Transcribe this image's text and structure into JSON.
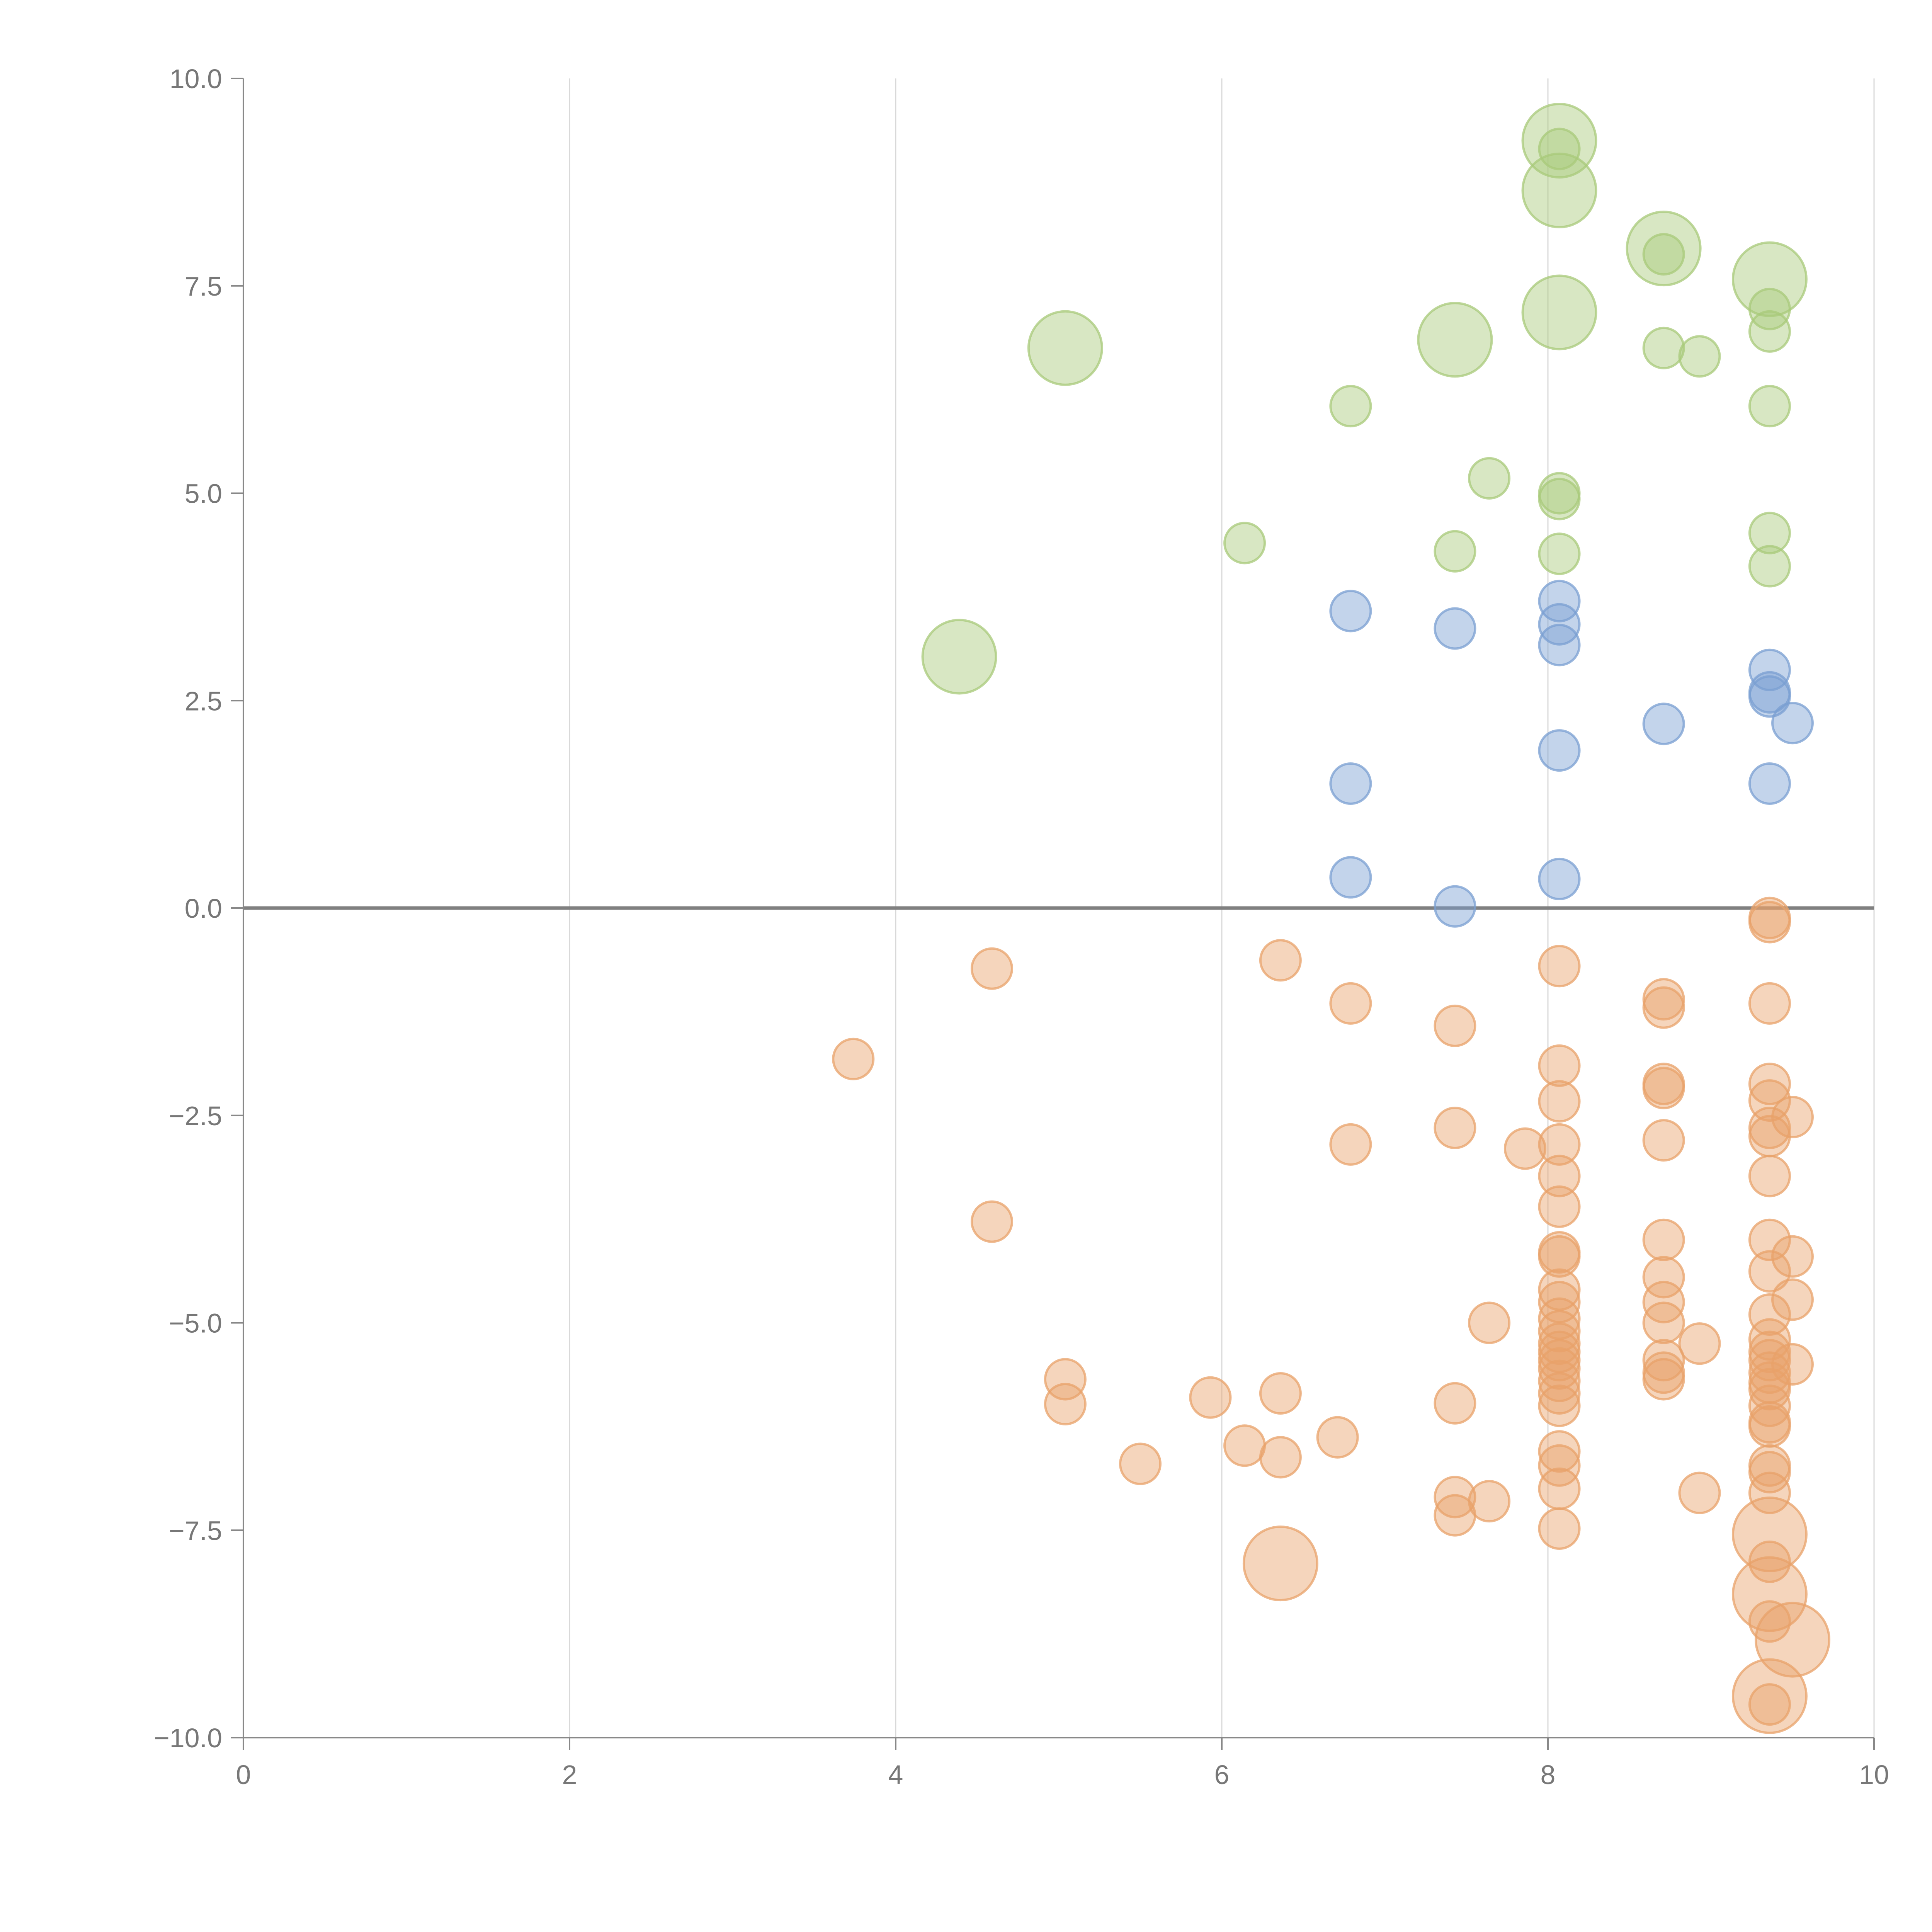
{
  "chart_data": {
    "type": "scatter",
    "title": "",
    "xlabel": "",
    "ylabel": "",
    "xlim": [
      0,
      10
    ],
    "ylim": [
      -10,
      10
    ],
    "x_ticks": [
      0,
      2,
      4,
      6,
      8,
      10
    ],
    "x_tick_labels": [
      "0",
      "2",
      "4",
      "6",
      "8",
      "10"
    ],
    "y_ticks": [
      10,
      7.5,
      5,
      2.5,
      0,
      -2.5,
      -5,
      -7.5,
      -10
    ],
    "y_tick_labels": [
      "10.0",
      "7.5",
      "5.0",
      "2.5",
      "0.0",
      "−2.5",
      "−5.0",
      "−7.5",
      "−10.0"
    ],
    "grid": "vertical",
    "reference_line_y": 0,
    "colors": {
      "green": "#a8c97a",
      "blue": "#7a9fd2",
      "orange": "#e8a26a"
    },
    "series": [
      {
        "name": "green",
        "color": "#a8c97a",
        "points": [
          {
            "x": 8.07,
            "y": 9.25,
            "s": 3
          },
          {
            "x": 8.07,
            "y": 9.15,
            "s": 1
          },
          {
            "x": 8.07,
            "y": 8.65,
            "s": 3
          },
          {
            "x": 8.71,
            "y": 7.95,
            "s": 3
          },
          {
            "x": 8.71,
            "y": 7.88,
            "s": 1
          },
          {
            "x": 9.36,
            "y": 7.58,
            "s": 3
          },
          {
            "x": 9.36,
            "y": 7.22,
            "s": 1
          },
          {
            "x": 8.07,
            "y": 7.18,
            "s": 3
          },
          {
            "x": 9.36,
            "y": 6.95,
            "s": 1
          },
          {
            "x": 7.43,
            "y": 6.85,
            "s": 3
          },
          {
            "x": 5.04,
            "y": 6.75,
            "s": 3
          },
          {
            "x": 8.71,
            "y": 6.75,
            "s": 1
          },
          {
            "x": 8.93,
            "y": 6.65,
            "s": 1
          },
          {
            "x": 6.79,
            "y": 6.05,
            "s": 1
          },
          {
            "x": 9.36,
            "y": 6.05,
            "s": 1
          },
          {
            "x": 7.64,
            "y": 5.18,
            "s": 1
          },
          {
            "x": 8.07,
            "y": 5.0,
            "s": 1
          },
          {
            "x": 8.07,
            "y": 4.93,
            "s": 1
          },
          {
            "x": 9.36,
            "y": 4.52,
            "s": 1
          },
          {
            "x": 6.14,
            "y": 4.4,
            "s": 1
          },
          {
            "x": 7.43,
            "y": 4.3,
            "s": 1
          },
          {
            "x": 8.07,
            "y": 4.27,
            "s": 1
          },
          {
            "x": 9.36,
            "y": 4.12,
            "s": 1
          },
          {
            "x": 4.39,
            "y": 3.03,
            "s": 3
          }
        ]
      },
      {
        "name": "blue",
        "color": "#7a9fd2",
        "points": [
          {
            "x": 8.07,
            "y": 3.7,
            "s": 1
          },
          {
            "x": 6.79,
            "y": 3.58,
            "s": 1
          },
          {
            "x": 8.07,
            "y": 3.42,
            "s": 1
          },
          {
            "x": 7.43,
            "y": 3.37,
            "s": 1
          },
          {
            "x": 8.07,
            "y": 3.17,
            "s": 1
          },
          {
            "x": 9.36,
            "y": 2.87,
            "s": 1
          },
          {
            "x": 9.36,
            "y": 2.6,
            "s": 1
          },
          {
            "x": 9.36,
            "y": 2.55,
            "s": 1
          },
          {
            "x": 9.5,
            "y": 2.23,
            "s": 1
          },
          {
            "x": 8.71,
            "y": 2.22,
            "s": 1
          },
          {
            "x": 8.07,
            "y": 1.9,
            "s": 1
          },
          {
            "x": 6.79,
            "y": 1.5,
            "s": 1
          },
          {
            "x": 9.36,
            "y": 1.5,
            "s": 1
          },
          {
            "x": 6.79,
            "y": 0.37,
            "s": 1
          },
          {
            "x": 8.07,
            "y": 0.35,
            "s": 1
          },
          {
            "x": 7.43,
            "y": 0.02,
            "s": 1
          }
        ]
      },
      {
        "name": "orange",
        "color": "#e8a26a",
        "points": [
          {
            "x": 9.36,
            "y": -0.12,
            "s": 1
          },
          {
            "x": 9.36,
            "y": -0.17,
            "s": 1
          },
          {
            "x": 6.36,
            "y": -0.63,
            "s": 1
          },
          {
            "x": 8.07,
            "y": -0.7,
            "s": 1
          },
          {
            "x": 4.59,
            "y": -0.73,
            "s": 1
          },
          {
            "x": 8.71,
            "y": -1.1,
            "s": 1
          },
          {
            "x": 6.79,
            "y": -1.15,
            "s": 1
          },
          {
            "x": 9.36,
            "y": -1.15,
            "s": 1
          },
          {
            "x": 8.71,
            "y": -1.2,
            "s": 1
          },
          {
            "x": 7.43,
            "y": -1.42,
            "s": 1
          },
          {
            "x": 3.74,
            "y": -1.82,
            "s": 1
          },
          {
            "x": 8.07,
            "y": -1.9,
            "s": 1
          },
          {
            "x": 8.71,
            "y": -2.12,
            "s": 1
          },
          {
            "x": 9.36,
            "y": -2.12,
            "s": 1
          },
          {
            "x": 8.71,
            "y": -2.17,
            "s": 1
          },
          {
            "x": 8.07,
            "y": -2.33,
            "s": 1
          },
          {
            "x": 9.36,
            "y": -2.32,
            "s": 1
          },
          {
            "x": 9.5,
            "y": -2.52,
            "s": 1
          },
          {
            "x": 7.43,
            "y": -2.65,
            "s": 1
          },
          {
            "x": 9.36,
            "y": -2.65,
            "s": 1
          },
          {
            "x": 9.36,
            "y": -2.75,
            "s": 1
          },
          {
            "x": 8.71,
            "y": -2.8,
            "s": 1
          },
          {
            "x": 6.79,
            "y": -2.85,
            "s": 1
          },
          {
            "x": 8.07,
            "y": -2.85,
            "s": 1
          },
          {
            "x": 7.86,
            "y": -2.9,
            "s": 1
          },
          {
            "x": 8.07,
            "y": -3.23,
            "s": 1
          },
          {
            "x": 9.36,
            "y": -3.23,
            "s": 1
          },
          {
            "x": 8.07,
            "y": -3.6,
            "s": 1
          },
          {
            "x": 4.59,
            "y": -3.78,
            "s": 1
          },
          {
            "x": 8.71,
            "y": -4.0,
            "s": 1
          },
          {
            "x": 9.36,
            "y": -4.0,
            "s": 1
          },
          {
            "x": 8.07,
            "y": -4.15,
            "s": 1
          },
          {
            "x": 8.07,
            "y": -4.2,
            "s": 1
          },
          {
            "x": 9.5,
            "y": -4.2,
            "s": 1
          },
          {
            "x": 9.36,
            "y": -4.38,
            "s": 1
          },
          {
            "x": 8.71,
            "y": -4.45,
            "s": 1
          },
          {
            "x": 8.07,
            "y": -4.6,
            "s": 1
          },
          {
            "x": 8.07,
            "y": -4.75,
            "s": 1
          },
          {
            "x": 9.5,
            "y": -4.72,
            "s": 1
          },
          {
            "x": 8.71,
            "y": -4.75,
            "s": 1
          },
          {
            "x": 9.36,
            "y": -4.9,
            "s": 1
          },
          {
            "x": 8.07,
            "y": -4.95,
            "s": 1
          },
          {
            "x": 7.64,
            "y": -5.0,
            "s": 1
          },
          {
            "x": 8.71,
            "y": -5.0,
            "s": 1
          },
          {
            "x": 8.07,
            "y": -5.1,
            "s": 1
          },
          {
            "x": 9.36,
            "y": -5.2,
            "s": 1
          },
          {
            "x": 8.93,
            "y": -5.25,
            "s": 1
          },
          {
            "x": 8.07,
            "y": -5.25,
            "s": 1
          },
          {
            "x": 8.07,
            "y": -5.35,
            "s": 1
          },
          {
            "x": 9.36,
            "y": -5.35,
            "s": 1
          },
          {
            "x": 8.07,
            "y": -5.45,
            "s": 1
          },
          {
            "x": 8.71,
            "y": -5.45,
            "s": 1
          },
          {
            "x": 9.36,
            "y": -5.45,
            "s": 1
          },
          {
            "x": 9.5,
            "y": -5.5,
            "s": 1
          },
          {
            "x": 8.07,
            "y": -5.55,
            "s": 1
          },
          {
            "x": 8.71,
            "y": -5.6,
            "s": 1
          },
          {
            "x": 9.36,
            "y": -5.6,
            "s": 1
          },
          {
            "x": 5.04,
            "y": -5.68,
            "s": 1
          },
          {
            "x": 8.71,
            "y": -5.68,
            "s": 1
          },
          {
            "x": 8.07,
            "y": -5.7,
            "s": 1
          },
          {
            "x": 9.36,
            "y": -5.72,
            "s": 1
          },
          {
            "x": 9.36,
            "y": -5.8,
            "s": 1
          },
          {
            "x": 8.07,
            "y": -5.85,
            "s": 1
          },
          {
            "x": 6.36,
            "y": -5.85,
            "s": 1
          },
          {
            "x": 5.93,
            "y": -5.9,
            "s": 1
          },
          {
            "x": 7.43,
            "y": -5.97,
            "s": 1
          },
          {
            "x": 5.04,
            "y": -5.98,
            "s": 1
          },
          {
            "x": 9.36,
            "y": -6.0,
            "s": 1
          },
          {
            "x": 8.07,
            "y": -6.0,
            "s": 1
          },
          {
            "x": 9.36,
            "y": -6.2,
            "s": 1
          },
          {
            "x": 9.36,
            "y": -6.25,
            "s": 1
          },
          {
            "x": 6.71,
            "y": -6.38,
            "s": 1
          },
          {
            "x": 6.14,
            "y": -6.48,
            "s": 1
          },
          {
            "x": 8.07,
            "y": -6.55,
            "s": 1
          },
          {
            "x": 6.36,
            "y": -6.62,
            "s": 1
          },
          {
            "x": 5.5,
            "y": -6.7,
            "s": 1
          },
          {
            "x": 8.07,
            "y": -6.72,
            "s": 1
          },
          {
            "x": 9.36,
            "y": -6.72,
            "s": 1
          },
          {
            "x": 9.36,
            "y": -6.8,
            "s": 1
          },
          {
            "x": 8.07,
            "y": -7.0,
            "s": 1
          },
          {
            "x": 8.93,
            "y": -7.05,
            "s": 1
          },
          {
            "x": 9.36,
            "y": -7.05,
            "s": 1
          },
          {
            "x": 7.43,
            "y": -7.1,
            "s": 1
          },
          {
            "x": 7.64,
            "y": -7.15,
            "s": 1
          },
          {
            "x": 7.43,
            "y": -7.32,
            "s": 1
          },
          {
            "x": 8.07,
            "y": -7.48,
            "s": 1
          },
          {
            "x": 9.36,
            "y": -7.55,
            "s": 3
          },
          {
            "x": 6.36,
            "y": -7.9,
            "s": 3
          },
          {
            "x": 9.36,
            "y": -7.88,
            "s": 1
          },
          {
            "x": 9.36,
            "y": -8.27,
            "s": 3
          },
          {
            "x": 9.36,
            "y": -8.6,
            "s": 1
          },
          {
            "x": 9.5,
            "y": -8.82,
            "s": 3
          },
          {
            "x": 9.36,
            "y": -9.5,
            "s": 3
          },
          {
            "x": 9.36,
            "y": -9.6,
            "s": 1
          }
        ]
      }
    ]
  }
}
